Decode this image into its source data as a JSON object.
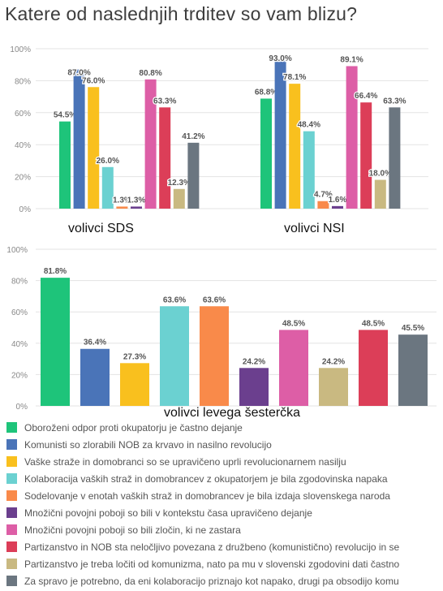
{
  "title": "Katere od naslednjih trditev so vam blizu?",
  "colors": [
    "#1ec47a",
    "#4a74b8",
    "#f9c01e",
    "#6bd1d1",
    "#f98a4a",
    "#6b3f8e",
    "#dd5ea6",
    "#dc3e58",
    "#c9b981",
    "#6b7680"
  ],
  "chart_data": [
    {
      "type": "bar",
      "y_ticks": [
        "0%",
        "20%",
        "40%",
        "60%",
        "80%",
        "100%"
      ],
      "ylim": [
        0,
        100
      ],
      "groups": [
        {
          "name": "volivci SDS",
          "values": [
            54.5,
            87.0,
            76.0,
            26.0,
            1.3,
            1.3,
            80.8,
            63.3,
            12.3,
            41.2
          ],
          "labels": [
            "54.5%",
            "87.0%",
            "76.0%",
            "26.0%",
            "1.3%",
            "1.3%",
            "80.8%",
            "63.3%",
            "12.3%",
            "41.2%"
          ]
        },
        {
          "name": "volivci NSI",
          "values": [
            68.8,
            93.0,
            78.1,
            48.4,
            4.7,
            1.6,
            89.1,
            66.4,
            18.0,
            63.3
          ],
          "labels": [
            "68.8%",
            "93.0%",
            "78.1%",
            "48.4%",
            "4.7%",
            "1.6%",
            "89.1%",
            "66.4%",
            "18.0%",
            "63.3%"
          ]
        }
      ]
    },
    {
      "type": "bar",
      "y_ticks": [
        "0%",
        "20%",
        "40%",
        "60%",
        "80%",
        "100%"
      ],
      "ylim": [
        0,
        100
      ],
      "groups": [
        {
          "name": "volivci levega šesterčka",
          "values": [
            81.8,
            36.4,
            27.3,
            63.6,
            63.6,
            24.2,
            48.5,
            24.2,
            48.5,
            45.5
          ],
          "labels": [
            "81.8%",
            "36.4%",
            "27.3%",
            "63.6%",
            "63.6%",
            "24.2%",
            "48.5%",
            "24.2%",
            "48.5%",
            "45.5%"
          ],
          "series_index": [
            0,
            1,
            2,
            3,
            4,
            5,
            6,
            8,
            7,
            9
          ]
        }
      ]
    }
  ],
  "legend": [
    "Oboroženi odpor proti okupatorju je častno dejanje",
    "Komunisti so zlorabili NOB za krvavo in nasilno revolucijo",
    "Vaške straže in domobranci so se upravičeno uprli revolucionarnem nasilju",
    "Kolaboracija vaških straž in domobrancev z okupatorjem je bila zgodovinska napaka",
    "Sodelovanje v enotah vaških straž in domobrancev je bila izdaja slovenskega naroda",
    "Množični povojni poboji so bili v kontekstu časa upravičeno dejanje",
    "Množični povojni poboji so bili zločin, ki ne zastara",
    "Partizanstvo in NOB sta neločljivo povezana z družbeno (komunistično) revolucijo in se",
    "Partizanstvo je treba ločiti od komunizma, nato pa mu v slovenski zgodovini dati častno",
    "Za spravo je potrebno, da eni kolaboracijo priznajo kot napako, drugi pa obsodijo komu"
  ]
}
